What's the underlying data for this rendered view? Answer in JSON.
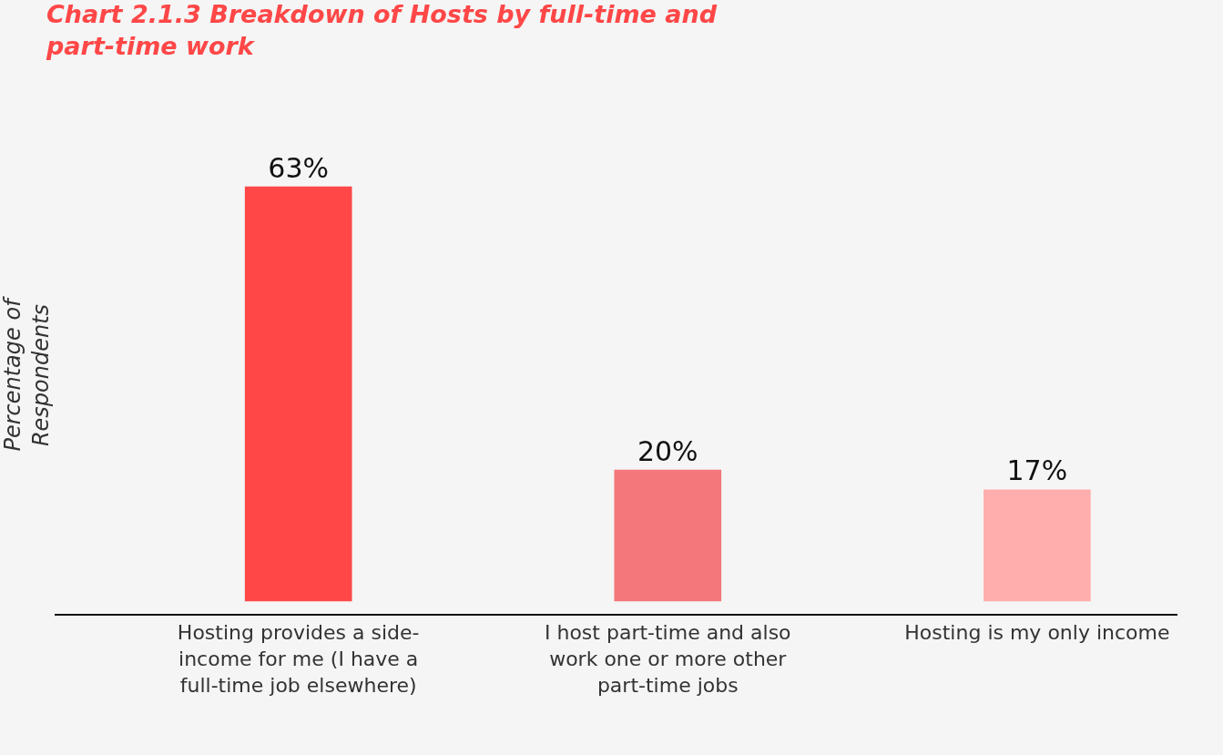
{
  "chart_data": {
    "type": "bar",
    "title": "Chart 2.1.3 Breakdown of Hosts by full-time and part-time work",
    "ylabel": "Percentage of Respondents",
    "categories": [
      "Hosting provides a side-income for me (I have a full-time job elsewhere)",
      "I host part-time and also work one or more other part-time jobs",
      "Hosting is my only income"
    ],
    "values": [
      63,
      20,
      17
    ],
    "colors": [
      "#ff4747",
      "#f3777b",
      "#ffadad"
    ],
    "value_labels": [
      "63%",
      "20%",
      "17%"
    ],
    "grid": false,
    "legend": false,
    "tick_labels": "x"
  }
}
